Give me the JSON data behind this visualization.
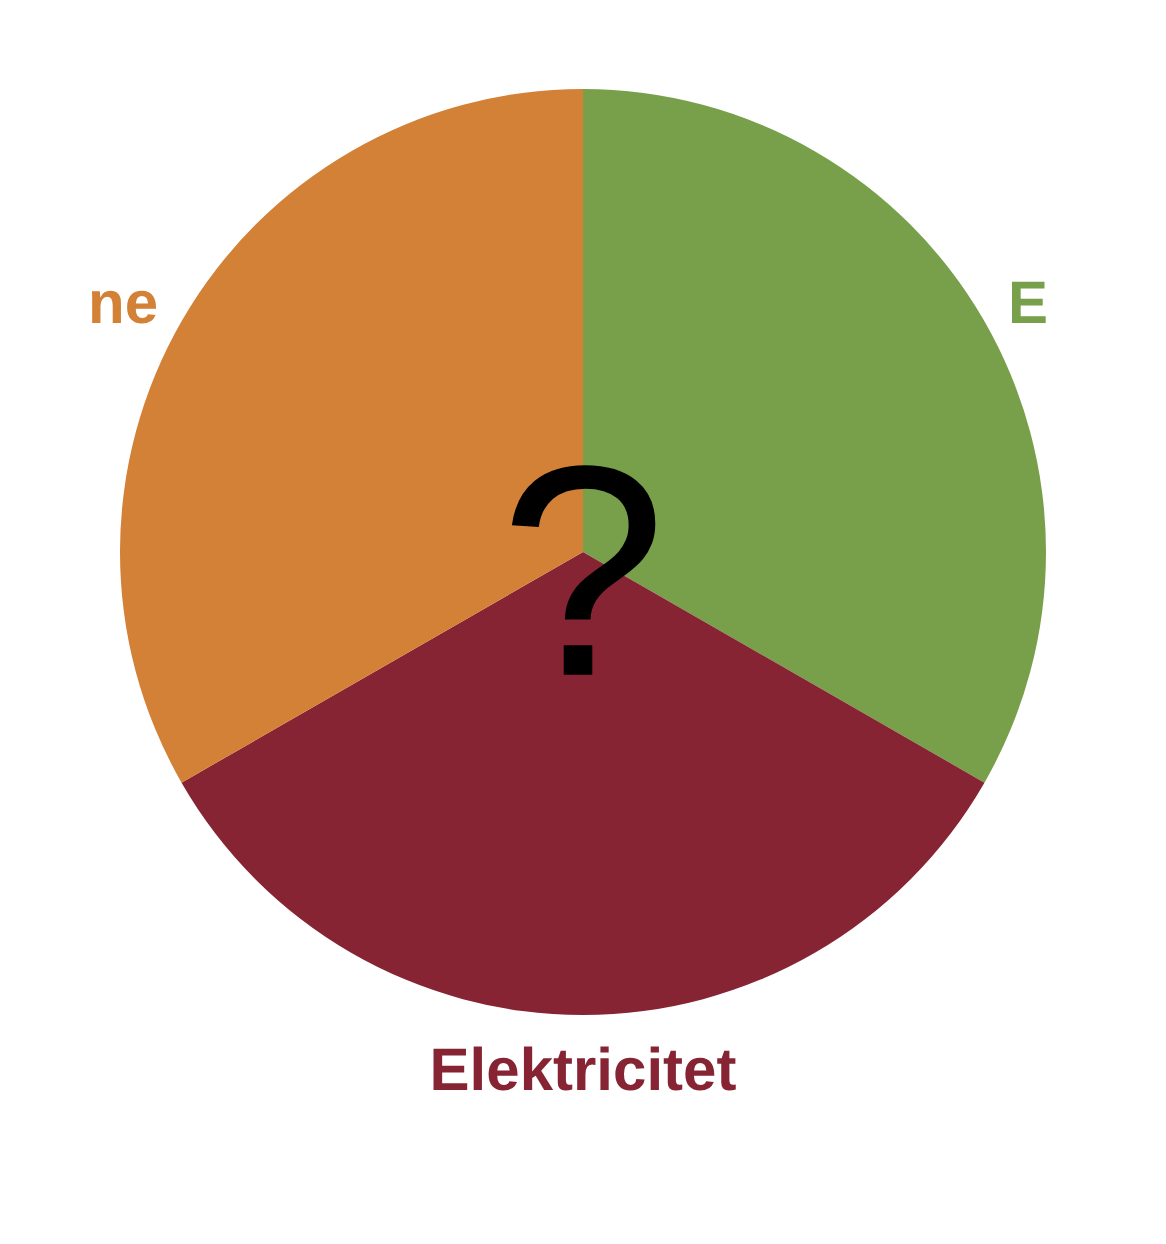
{
  "chart_data": {
    "type": "pie",
    "categories": [
      "E",
      "Elektricitet",
      "ne"
    ],
    "values": [
      33.3,
      33.4,
      33.3
    ],
    "colors": [
      "#78a04b",
      "#862433",
      "#d28136"
    ],
    "annotations": [
      "?"
    ],
    "legend": false
  }
}
